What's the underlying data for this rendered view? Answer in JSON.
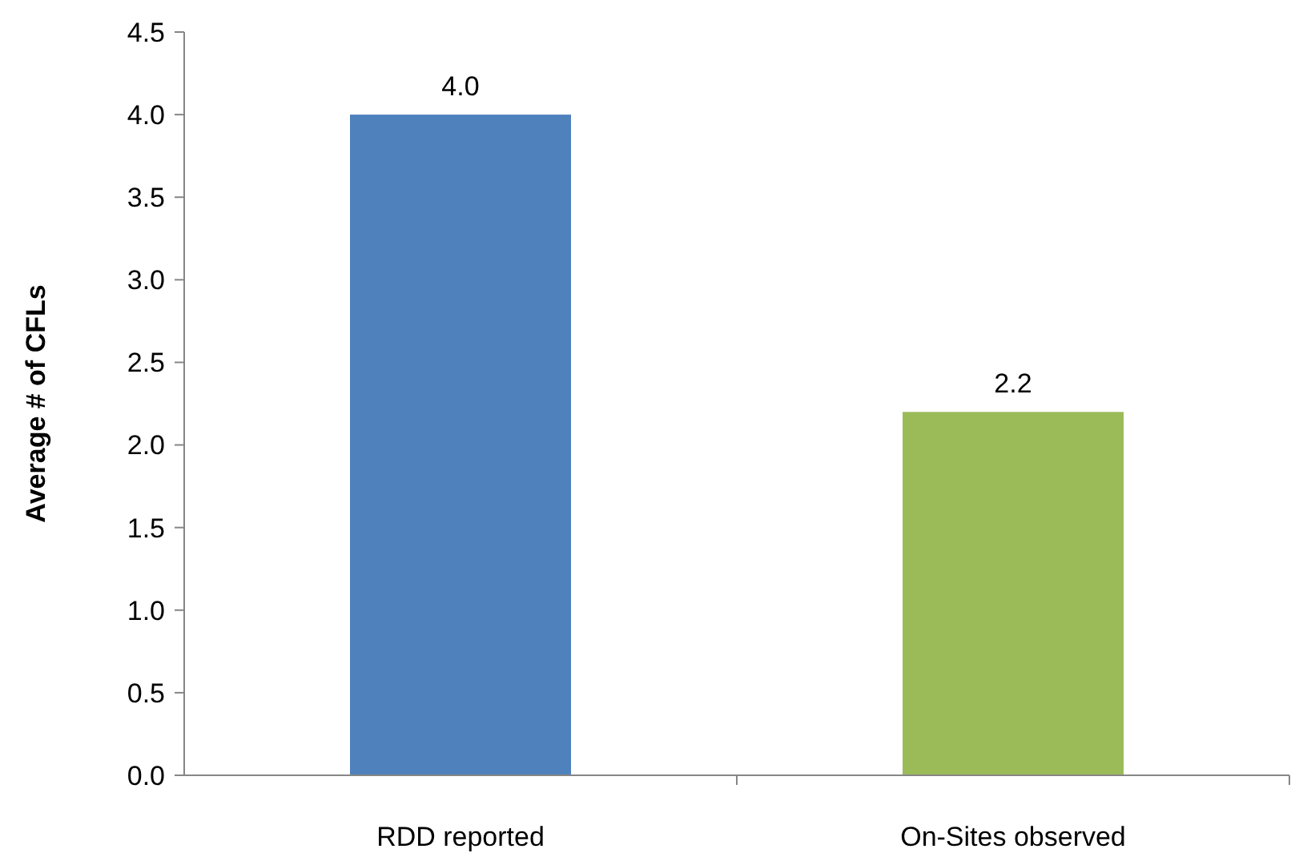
{
  "chart_data": {
    "type": "bar",
    "ylabel": "Average # of CFLs",
    "categories": [
      "RDD reported",
      "On-Sites observed"
    ],
    "values": [
      4.0,
      2.2
    ],
    "colors": [
      "#4f81bd",
      "#9bbb59"
    ],
    "value_labels": [
      "4.0",
      "2.2"
    ],
    "ylim": [
      0,
      4.5
    ],
    "yticks": [
      {
        "value": 0,
        "label": "0.0"
      },
      {
        "value": 0.5,
        "label": "0.5"
      },
      {
        "value": 1,
        "label": "1.0"
      },
      {
        "value": 1.5,
        "label": "1.5"
      },
      {
        "value": 2,
        "label": "2.0"
      },
      {
        "value": 2.5,
        "label": "2.5"
      },
      {
        "value": 3,
        "label": "3.0"
      },
      {
        "value": 3.5,
        "label": "3.5"
      },
      {
        "value": 4,
        "label": "4.0"
      },
      {
        "value": 4.5,
        "label": "4.5"
      }
    ]
  }
}
